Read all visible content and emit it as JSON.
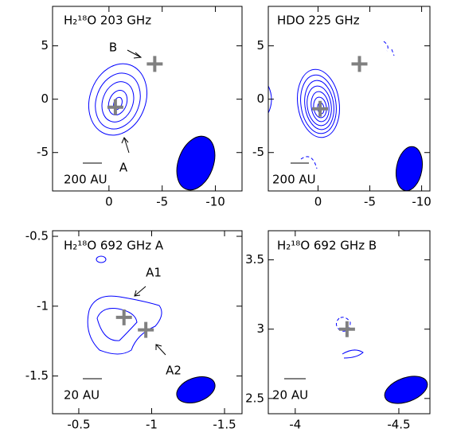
{
  "chart_data": [
    {
      "type": "contour",
      "title": "H₂¹⁸O 203 GHz",
      "xlim": [
        5.3,
        -12.5
      ],
      "ylim": [
        -8.6,
        8.7
      ],
      "xticks": [
        0,
        -5,
        -10
      ],
      "yticks": [
        5,
        0,
        -5
      ],
      "x": [
        -0.6,
        -4.3
      ],
      "values": [
        -0.75,
        3.3
      ],
      "marker_color": "#808080",
      "color": "#0000ff",
      "annotations": [
        "B",
        "A"
      ],
      "scale_label": "200 AU"
    },
    {
      "type": "contour",
      "title": "HDO 225 GHz",
      "xlim": [
        4.8,
        -10.8
      ],
      "ylim": [
        -8.6,
        8.7
      ],
      "xticks": [
        0,
        -5,
        -10
      ],
      "yticks": [
        5,
        0,
        -5
      ],
      "x": [
        -0.2,
        -4.0
      ],
      "values": [
        -0.9,
        3.3
      ],
      "marker_color": "#808080",
      "color": "#0000ff",
      "annotations": [],
      "scale_label": "200 AU"
    },
    {
      "type": "contour",
      "title": "H₂¹⁸O 692 GHz A",
      "xlim": [
        -0.32,
        -1.62
      ],
      "ylim": [
        -1.77,
        -0.46
      ],
      "xticks": [
        -0.5,
        -1.0,
        -1.5
      ],
      "yticks": [
        -0.5,
        -1.0,
        -1.5
      ],
      "x": [
        -0.81,
        -0.96
      ],
      "values": [
        -1.08,
        -1.17
      ],
      "marker_color": "#808080",
      "color": "#0000ff",
      "annotations": [
        "A1",
        "A2"
      ],
      "scale_label": "20 AU"
    },
    {
      "type": "contour",
      "title": "H₂¹⁸O 692 GHz B",
      "xlim": [
        -3.87,
        -4.65
      ],
      "ylim": [
        2.39,
        3.71
      ],
      "xticks": [
        -4.0,
        -4.5
      ],
      "yticks": [
        3.5,
        3.0,
        2.5
      ],
      "x": [
        -4.25
      ],
      "values": [
        3.0
      ],
      "marker_color": "#808080",
      "color": "#0000ff",
      "annotations": [],
      "scale_label": "20 AU"
    }
  ]
}
